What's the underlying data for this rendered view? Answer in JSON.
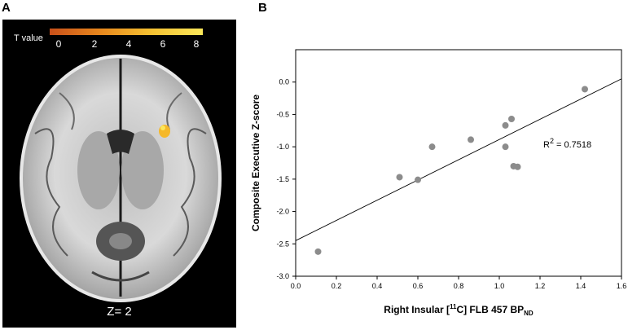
{
  "panels": {
    "a_label": "A",
    "b_label": "B"
  },
  "brain": {
    "colorbar_title": "T value",
    "colorbar_ticks": [
      "0",
      "2",
      "4",
      "6",
      "8"
    ],
    "colorbar_colors": [
      "#c8501a",
      "#e8881d",
      "#f5c232",
      "#fbe75a"
    ],
    "slice_label": "Z= 2"
  },
  "chart_data": {
    "type": "scatter",
    "xlabel_main": "Right Insular [",
    "xlabel_sup": "11",
    "xlabel_mid": "C] FLB 457 BP",
    "xlabel_sub": "ND",
    "ylabel": "Composite Executive Z-score",
    "xlim": [
      0.0,
      1.6
    ],
    "ylim": [
      -3.0,
      0.5
    ],
    "xticks": [
      "0.0",
      "0.2",
      "0.4",
      "0.6",
      "0.8",
      "1.0",
      "1.2",
      "1.4",
      "1.6"
    ],
    "yticks": [
      "0.0",
      "-0.5",
      "-1.0",
      "-1.5",
      "-2.0",
      "-2.5",
      "-3.0"
    ],
    "points": [
      {
        "x": 0.11,
        "y": -2.62
      },
      {
        "x": 0.51,
        "y": -1.47
      },
      {
        "x": 0.6,
        "y": -1.51
      },
      {
        "x": 0.67,
        "y": -1.0
      },
      {
        "x": 0.86,
        "y": -0.89
      },
      {
        "x": 1.03,
        "y": -0.67
      },
      {
        "x": 1.03,
        "y": -1.0
      },
      {
        "x": 1.06,
        "y": -0.57
      },
      {
        "x": 1.07,
        "y": -1.3
      },
      {
        "x": 1.09,
        "y": -1.31
      },
      {
        "x": 1.42,
        "y": -0.11
      }
    ],
    "fit_line": {
      "x0": 0.0,
      "y0": -2.45,
      "x1": 1.6,
      "y1": 0.05
    },
    "r2_label": "R",
    "r2_sup": "2",
    "r2_value": " = 0.7518",
    "point_color": "#8c8c8c"
  }
}
